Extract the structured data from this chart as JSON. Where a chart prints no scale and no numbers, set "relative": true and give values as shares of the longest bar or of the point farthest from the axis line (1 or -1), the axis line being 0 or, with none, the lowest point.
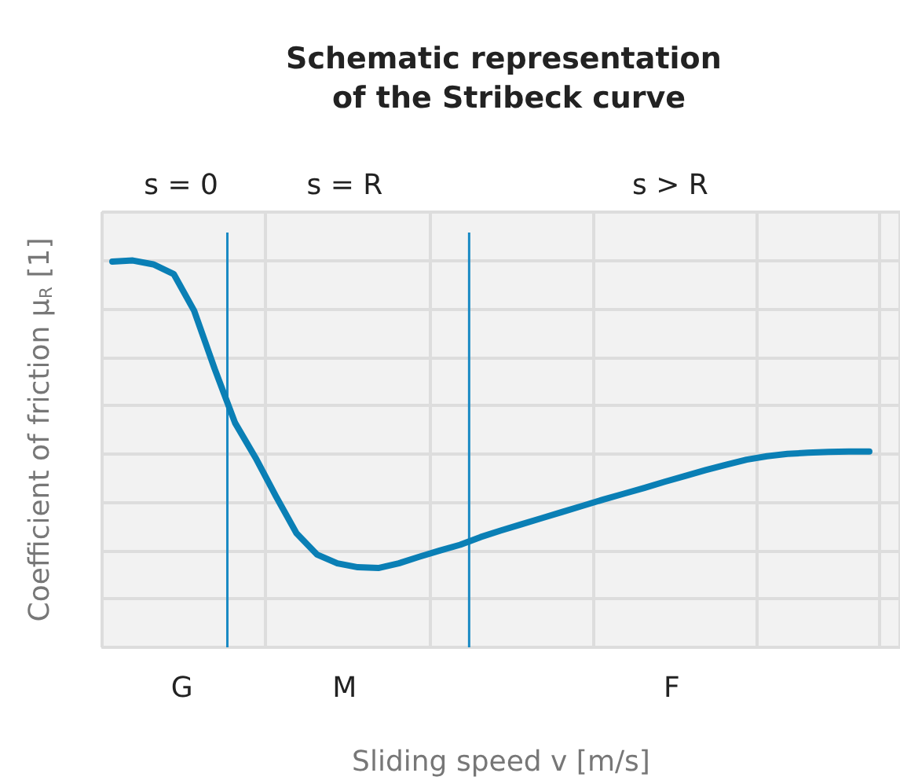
{
  "chart_data": {
    "type": "line",
    "title": "Schematic representation of the Stribeck curve",
    "xlabel": "Sliding speed v [m/s]",
    "ylabel": "Coefficient of friction μ$_{R}$ [1]",
    "relative": true,
    "grid": true,
    "marker": "none",
    "line_style": "solid",
    "categories": [
      null,
      null,
      null,
      null,
      null,
      null,
      null,
      null,
      null,
      null,
      null,
      null,
      null,
      null,
      null,
      null,
      null,
      null,
      null,
      null,
      null,
      null,
      null,
      null,
      null,
      null,
      null,
      null,
      null,
      null,
      null,
      null,
      null,
      null,
      null,
      null,
      null,
      null,
      null
    ],
    "series": [
      {
        "color": "#0a7fb5",
        "values": [
          0.997,
          1.0,
          0.99,
          0.965,
          0.87,
          0.72,
          0.58,
          0.49,
          0.39,
          0.295,
          0.24,
          0.217,
          0.207,
          0.205,
          0.217,
          0.234,
          0.25,
          0.265,
          0.285,
          0.302,
          0.318,
          0.334,
          0.35,
          0.366,
          0.382,
          0.397,
          0.412,
          0.428,
          0.443,
          0.458,
          0.472,
          0.485,
          0.494,
          0.5,
          0.503,
          0.505,
          0.506,
          0.506,
          null
        ]
      }
    ],
    "annotations": [
      "s = 0",
      "s = R",
      "s > R",
      "G",
      "M",
      "F"
    ]
  }
}
